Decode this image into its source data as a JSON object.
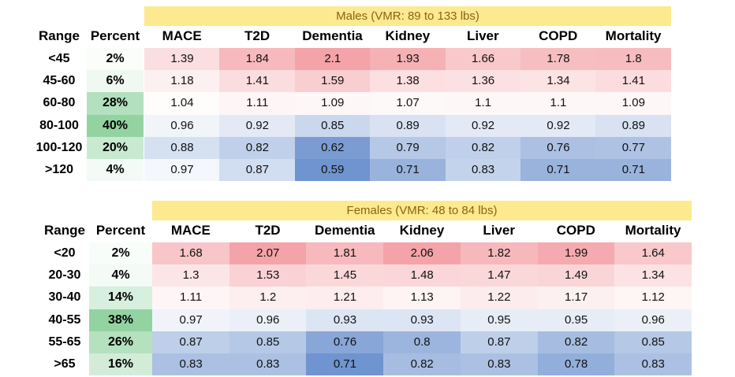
{
  "chart_data": [
    {
      "type": "table",
      "title": "Males (VMR: 89 to 133 lbs)",
      "row_header": "Range",
      "percent_header": "Percent",
      "columns": [
        "MACE",
        "T2D",
        "Dementia",
        "Kidney",
        "Liver",
        "COPD",
        "Mortality"
      ],
      "rows": [
        {
          "range": "<45",
          "percent": "2%",
          "percent_value": 2,
          "values": [
            1.39,
            1.84,
            2.1,
            1.93,
            1.66,
            1.78,
            1.8
          ]
        },
        {
          "range": "45-60",
          "percent": "6%",
          "percent_value": 6,
          "values": [
            1.18,
            1.41,
            1.59,
            1.38,
            1.36,
            1.34,
            1.41
          ]
        },
        {
          "range": "60-80",
          "percent": "28%",
          "percent_value": 28,
          "values": [
            1.04,
            1.11,
            1.09,
            1.07,
            1.1,
            1.1,
            1.09
          ]
        },
        {
          "range": "80-100",
          "percent": "40%",
          "percent_value": 40,
          "values": [
            0.96,
            0.92,
            0.85,
            0.89,
            0.92,
            0.92,
            0.89
          ]
        },
        {
          "range": "100-120",
          "percent": "20%",
          "percent_value": 20,
          "values": [
            0.88,
            0.82,
            0.62,
            0.79,
            0.82,
            0.76,
            0.77
          ]
        },
        {
          "range": ">120",
          "percent": "4%",
          "percent_value": 4,
          "values": [
            0.97,
            0.87,
            0.59,
            0.71,
            0.83,
            0.71,
            0.71
          ]
        }
      ]
    },
    {
      "type": "table",
      "title": "Females (VMR: 48 to 84 lbs)",
      "row_header": "Range",
      "percent_header": "Percent",
      "columns": [
        "MACE",
        "T2D",
        "Dementia",
        "Kidney",
        "Liver",
        "COPD",
        "Mortality"
      ],
      "rows": [
        {
          "range": "<20",
          "percent": "2%",
          "percent_value": 2,
          "values": [
            1.68,
            2.07,
            1.81,
            2.06,
            1.82,
            1.99,
            1.64
          ]
        },
        {
          "range": "20-30",
          "percent": "4%",
          "percent_value": 4,
          "values": [
            1.3,
            1.53,
            1.45,
            1.48,
            1.47,
            1.49,
            1.34
          ]
        },
        {
          "range": "30-40",
          "percent": "14%",
          "percent_value": 14,
          "values": [
            1.11,
            1.2,
            1.21,
            1.13,
            1.22,
            1.17,
            1.12
          ]
        },
        {
          "range": "40-55",
          "percent": "38%",
          "percent_value": 38,
          "values": [
            0.97,
            0.96,
            0.93,
            0.93,
            0.95,
            0.95,
            0.96
          ]
        },
        {
          "range": "55-65",
          "percent": "26%",
          "percent_value": 26,
          "values": [
            0.87,
            0.85,
            0.76,
            0.8,
            0.87,
            0.82,
            0.85
          ]
        },
        {
          "range": ">65",
          "percent": "16%",
          "percent_value": 16,
          "values": [
            0.83,
            0.83,
            0.71,
            0.82,
            0.83,
            0.78,
            0.83
          ]
        }
      ]
    }
  ],
  "colors": {
    "high": "#f4a3a8",
    "neutral": "#ffffff",
    "low": "#6f94cf",
    "percent_high": "#93d3a2",
    "banner": "#fde98f",
    "banner_text": "#8a6414"
  }
}
